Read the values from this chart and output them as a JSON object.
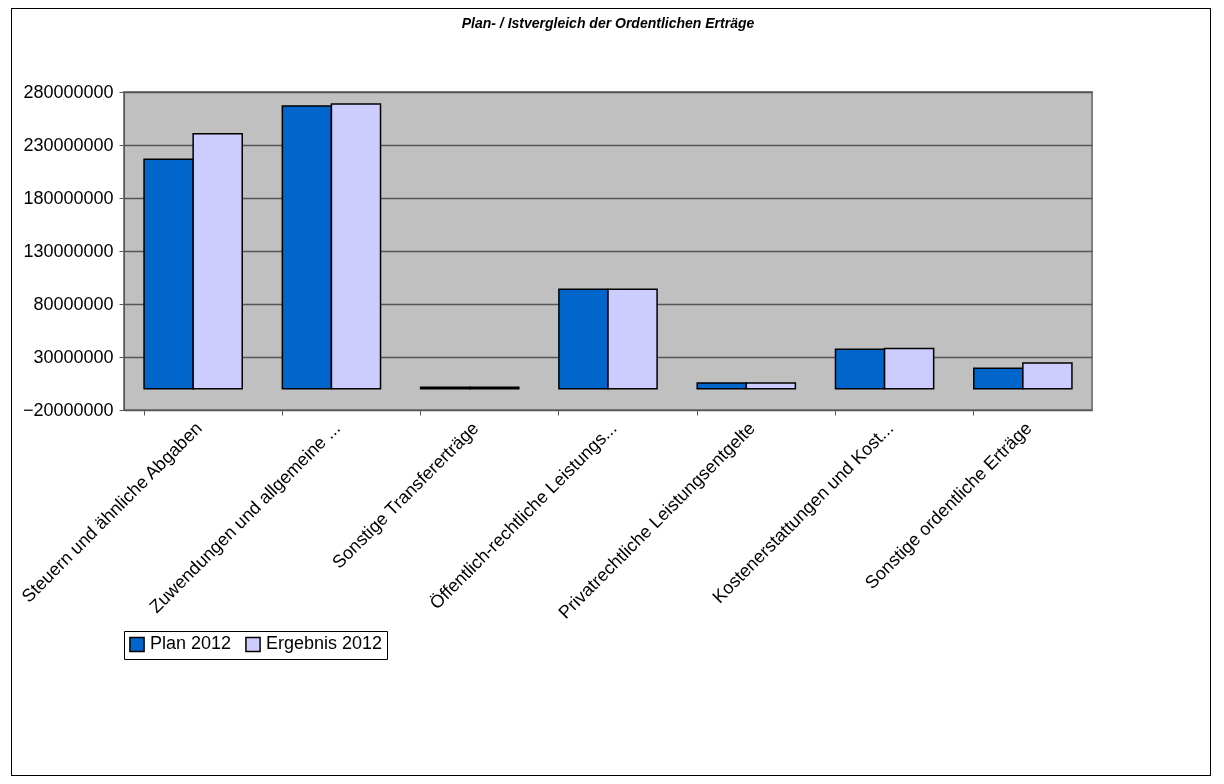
{
  "chart_data": {
    "type": "bar",
    "title": "Plan- / Istvergleich der Ordentlichen Erträge",
    "categories": [
      "Steuern und ähnliche Abgaben",
      "Zuwendungen und allgemeine ...",
      "Sonstige Transfererträge",
      "Öffentlich-rechtliche Leistungs...",
      "Privatrechtliche Leistungsentgelte",
      "Kostenerstattungen und Kost...",
      "Sonstige ordentliche Erträge"
    ],
    "series": [
      {
        "name": "Plan 2012",
        "color": "#0066cc",
        "values": [
          216500000,
          266700000,
          1500000,
          94000000,
          5400000,
          37300000,
          19300000
        ]
      },
      {
        "name": "Ergebnis 2012",
        "color": "#ccccff",
        "values": [
          240700000,
          268700000,
          1500000,
          94000000,
          5400000,
          38000000,
          24400000
        ]
      }
    ],
    "ylim": [
      -20000000,
      280000000
    ],
    "yticks": [
      -20000000,
      30000000,
      80000000,
      130000000,
      180000000,
      230000000,
      280000000
    ],
    "grid": "y",
    "legend": "bottom"
  }
}
